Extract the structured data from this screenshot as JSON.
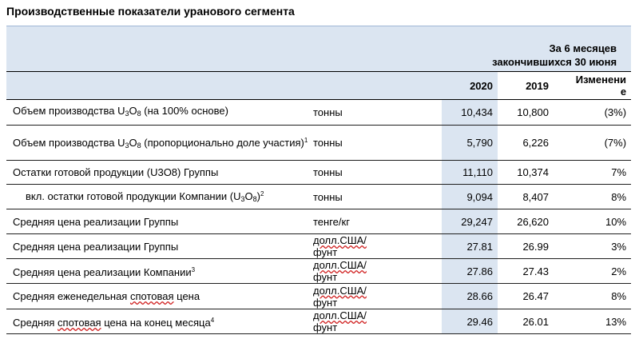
{
  "title": "Производственные показатели уранового сегмента",
  "header": {
    "period_line1": "За 6 месяцев",
    "period_line2": "закончившихся 30 июня",
    "col_2020": "2020",
    "col_2019": "2019",
    "col_change_line1": "Изменени",
    "col_change_line2": "е"
  },
  "rows": [
    {
      "label_pre": "Объем производства U",
      "s1": "3",
      "mid": "O",
      "s2": "8",
      "label_post": " (на 100% основе)",
      "unit": "тонны",
      "v2020": "10,434",
      "v2019": "10,800",
      "change": "(3%)"
    },
    {
      "label_pre": "Объем производства U",
      "s1": "3",
      "mid": "O",
      "s2": "8",
      "label_post": " (пропорционально доле участия)",
      "sup": "1",
      "unit": "тонны",
      "v2020": "5,790",
      "v2019": "6,226",
      "change": "(7%)"
    },
    {
      "label": "Остатки готовой продукции (U3O8) Группы",
      "unit": "тонны",
      "v2020": "11,110",
      "v2019": "10,374",
      "change": "7%"
    },
    {
      "label_pre": "вкл. остатки готовой продукции Компании (U",
      "s1": "3",
      "mid": "O",
      "s2": "8",
      "label_post": ")",
      "sup": "2",
      "unit": "тонны",
      "v2020": "9,094",
      "v2019": "8,407",
      "change": "8%"
    },
    {
      "label": "Средняя цена реализации Группы",
      "unit": "тенге/кг",
      "v2020": "29,247",
      "v2019": "26,620",
      "change": "10%"
    },
    {
      "label": "Средняя цена реализации Группы",
      "unit_a": "долл.США/",
      "unit_b": "фунт",
      "v2020": "27.81",
      "v2019": "26.99",
      "change": "3%"
    },
    {
      "label": "Средняя цена реализации Компании",
      "sup": "3",
      "unit_a": "долл.США/",
      "unit_b": "фунт",
      "v2020": "27.86",
      "v2019": "27.43",
      "change": "2%"
    },
    {
      "label_a": "Средняя еженедельная ",
      "label_b": "спотовая",
      "label_c": " цена",
      "unit_a": "долл.США/",
      "unit_b": "фунт",
      "v2020": "28.66",
      "v2019": "26.47",
      "change": "8%"
    },
    {
      "label_a": "Средняя ",
      "label_b": "спотовая",
      "label_c": " цена на конец месяца",
      "sup": "4",
      "unit_a": "долл.США/",
      "unit_b": "фунт",
      "v2020": "29.46",
      "v2019": "26.01",
      "change": "13%"
    }
  ]
}
